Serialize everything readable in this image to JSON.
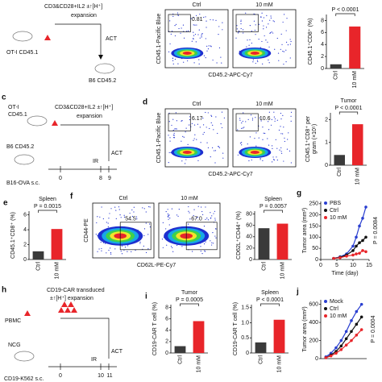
{
  "schematics": {
    "a": {
      "donor": "OT-I CD45.1",
      "protocol": "CD3&CD28+IL2 ±↑[H⁺]",
      "protocol_2": "expansion",
      "transfer": "ACT",
      "recipient": "B6 CD45.2"
    },
    "c": {
      "panel": "c",
      "donor_1": "OT-I",
      "donor_2": "CD45.1",
      "protocol": "CD3&CD28+IL2 ±↑[H⁺]",
      "protocol_2": "expansion",
      "recipient": "B6 CD45.2",
      "tumor": "B16-OVA s.c.",
      "irradiation": "IR",
      "transfer": "ACT",
      "days": [
        "0",
        "8",
        "9"
      ]
    },
    "h": {
      "panel": "h",
      "donor": "PBMC",
      "protocol": "CD19-CAR transduced",
      "protocol_2": "±↑[H⁺] expansion",
      "recipient": "NCG",
      "tumor": "CD19-K562 s.c.",
      "irradiation": "IR",
      "transfer": "ACT",
      "days": [
        "0",
        "10",
        "11"
      ]
    }
  },
  "flow_plots": [
    {
      "y_label": "CD45.1-Pacific Blue",
      "x_label": "CD45.2-APC-Cy7",
      "plots": [
        {
          "title": "Ctrl",
          "gate": "0.81"
        },
        {
          "title": "10 mM"
        }
      ]
    },
    {
      "panel": "d",
      "y_label": "CD45.1-Pacific Blue",
      "x_label": "CD45.2-APC-Cy7",
      "plots": [
        {
          "title": "Ctrl",
          "gate": "6.17"
        },
        {
          "title": "10 mM",
          "gate": "10.6"
        }
      ]
    },
    {
      "panel": "f",
      "y_label": "CD44-PE",
      "x_label": "CD62L-PE-Cy7",
      "plots": [
        {
          "title": "Ctrl",
          "gate": "54.5"
        },
        {
          "title": "10 mM",
          "gate": "67.0"
        }
      ]
    }
  ],
  "chart_data": [
    {
      "type": "bar",
      "annotation": "P < 0.0001",
      "y_label": [
        "CD45.1⁺CD8⁺ (%)"
      ],
      "categories": [
        "Ctrl",
        "10 mM"
      ],
      "values": [
        0.7,
        7
      ],
      "colors": [
        "#3a3a3a",
        "#e8252a"
      ],
      "ylim": [
        0,
        9
      ],
      "yticks": [
        0,
        2,
        4,
        6,
        8
      ]
    },
    {
      "type": "bar",
      "title": "Tumor",
      "annotation": "P < 0.0001",
      "y_label": [
        "CD45.1⁺CD8⁺ per",
        "gram (×10⁵)"
      ],
      "categories": [
        "Ctrl",
        "10 mM"
      ],
      "values": [
        0.45,
        1.8
      ],
      "colors": [
        "#3a3a3a",
        "#e8252a"
      ],
      "ylim": [
        0,
        2.3
      ],
      "yticks": [
        0,
        1,
        2
      ]
    },
    {
      "type": "bar",
      "panel": "e",
      "title": "Spleen",
      "annotation": "P = 0.0015",
      "y_label": [
        "CD45.1⁺CD8⁺ (%)"
      ],
      "categories": [
        "Ctrl",
        "10 mM"
      ],
      "values": [
        1.1,
        4.1
      ],
      "colors": [
        "#3a3a3a",
        "#e8252a"
      ],
      "ylim": [
        0,
        6.5
      ],
      "yticks": [
        0,
        2,
        4,
        6
      ]
    },
    {
      "type": "bar",
      "title": "Spleen",
      "annotation": "P = 0.0057",
      "y_label": [
        "CD62L⁺CD44⁺ (%)"
      ],
      "categories": [
        "Ctrl",
        "10 mM"
      ],
      "values": [
        55,
        63
      ],
      "colors": [
        "#3a3a3a",
        "#e8252a"
      ],
      "ylim": [
        0,
        85
      ],
      "yticks": [
        0,
        20,
        40,
        60,
        80
      ]
    },
    {
      "type": "line",
      "panel": "g",
      "annotation": "P = 0.0084",
      "x_label": "Time (day)",
      "y_label": [
        "Tumor area (mm²)"
      ],
      "x": [
        4,
        6,
        8,
        10,
        11,
        12,
        13,
        14
      ],
      "series": [
        {
          "name": "PBS",
          "color": "#2a3fd0",
          "values": [
            5,
            12,
            25,
            60,
            100,
            150,
            185,
            235
          ]
        },
        {
          "name": "Ctrl",
          "color": "#111111",
          "values": [
            5,
            10,
            20,
            40,
            60,
            75,
            85,
            100
          ]
        },
        {
          "name": "10 mM",
          "color": "#e8252a",
          "values": [
            5,
            8,
            15,
            20,
            25,
            28,
            40,
            35
          ]
        }
      ],
      "xlim": [
        0,
        15
      ],
      "xticks": [
        0,
        5,
        10,
        15
      ],
      "ylim": [
        0,
        260
      ],
      "yticks": [
        0,
        50,
        100,
        150,
        200,
        250
      ]
    },
    {
      "type": "bar",
      "panel": "i",
      "title": "Tumor",
      "annotation": "P = 0.0005",
      "y_label": [
        "CD19-CAR T cell (%)"
      ],
      "categories": [
        "Ctrl",
        "10 mM"
      ],
      "values": [
        1.2,
        5.6
      ],
      "colors": [
        "#3a3a3a",
        "#e8252a"
      ],
      "ylim": [
        0,
        8.5
      ],
      "yticks": [
        0,
        2,
        4,
        6,
        8
      ]
    },
    {
      "type": "bar",
      "title": "Spleen",
      "annotation": "P < 0.0001",
      "y_label": [
        "CD19-CAR T cell (%)"
      ],
      "categories": [
        "Ctrl",
        "10 mM"
      ],
      "values": [
        0.35,
        1.1
      ],
      "colors": [
        "#3a3a3a",
        "#e8252a"
      ],
      "ylim": [
        0,
        1.6
      ],
      "yticks": [
        0,
        0.5,
        {
          "value": 1,
          "label": "1.0"
        },
        1.5
      ]
    },
    {
      "type": "line",
      "panel": "j",
      "annotation": "P = 0.0004",
      "y_label": [
        "Tumor area (mm²)"
      ],
      "x": [
        1,
        2,
        3,
        4,
        5,
        6,
        7,
        8
      ],
      "series": [
        {
          "name": "Mock",
          "color": "#2a3fd0",
          "values": [
            20,
            60,
            120,
            200,
            300,
            420,
            520,
            600
          ]
        },
        {
          "name": "Ctrl",
          "color": "#111111",
          "values": [
            10,
            40,
            80,
            140,
            220,
            300,
            380,
            460
          ]
        },
        {
          "name": "10 mM",
          "color": "#e8252a",
          "values": [
            10,
            30,
            60,
            100,
            150,
            200,
            260,
            320
          ]
        }
      ],
      "xlim": [
        0,
        9
      ],
      "ylim": [
        0,
        650
      ],
      "yticks": [
        0,
        200,
        400,
        600
      ]
    }
  ]
}
